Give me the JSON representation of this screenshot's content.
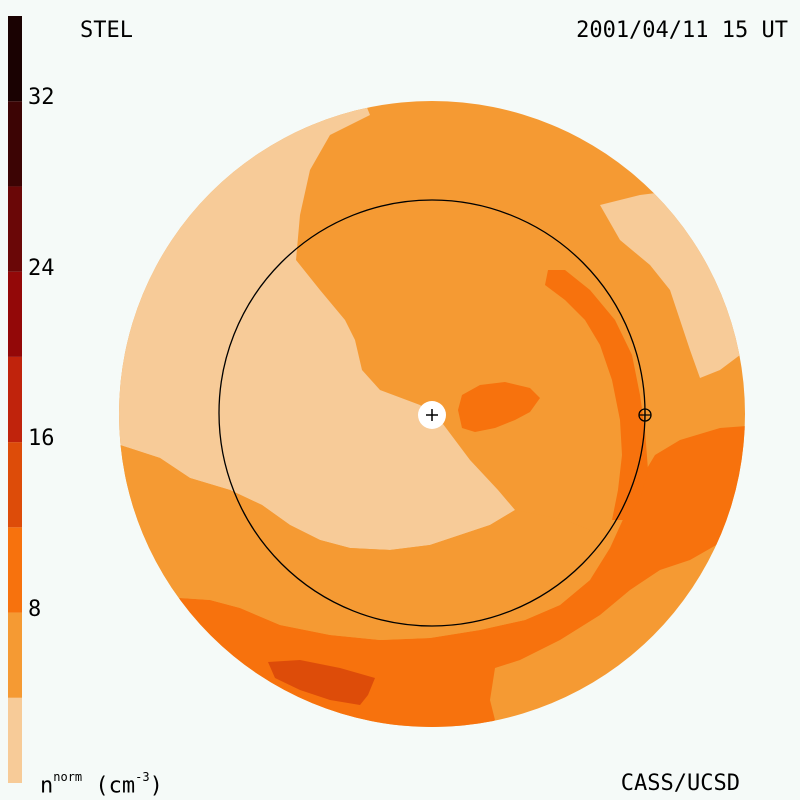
{
  "header": {
    "observatory": "STEL",
    "timestamp": "2001/04/11 15 UT"
  },
  "footer": {
    "credit": "CASS/UCSD",
    "units_main": "n",
    "units_sup": "norm",
    "units_rest": " (cm",
    "units_exp": "-3",
    "units_close": ")"
  },
  "colorbar": {
    "levels": [
      {
        "from": 0,
        "to": 4,
        "color": "#f7cb98"
      },
      {
        "from": 4,
        "to": 8,
        "color": "#f59a33"
      },
      {
        "from": 8,
        "to": 12,
        "color": "#f7720d"
      },
      {
        "from": 12,
        "to": 16,
        "color": "#dd4c09"
      },
      {
        "from": 16,
        "to": 20,
        "color": "#c0230c"
      },
      {
        "from": 20,
        "to": 24,
        "color": "#930808"
      },
      {
        "from": 24,
        "to": 28,
        "color": "#6a0707"
      },
      {
        "from": 28,
        "to": 32,
        "color": "#3c0404"
      },
      {
        "from": 32,
        "to": 36,
        "color": "#1a0202"
      }
    ],
    "ticks": [
      "8",
      "16",
      "24",
      "32"
    ],
    "range": [
      0,
      36
    ]
  },
  "map": {
    "background_color": "#f59a33",
    "colors": {
      "low": "#f7cb98",
      "mid": "#f59a33",
      "high": "#f7720d",
      "peak": "#dd4c09"
    },
    "markers": [
      "sun-marker",
      "earth-marker"
    ]
  }
}
